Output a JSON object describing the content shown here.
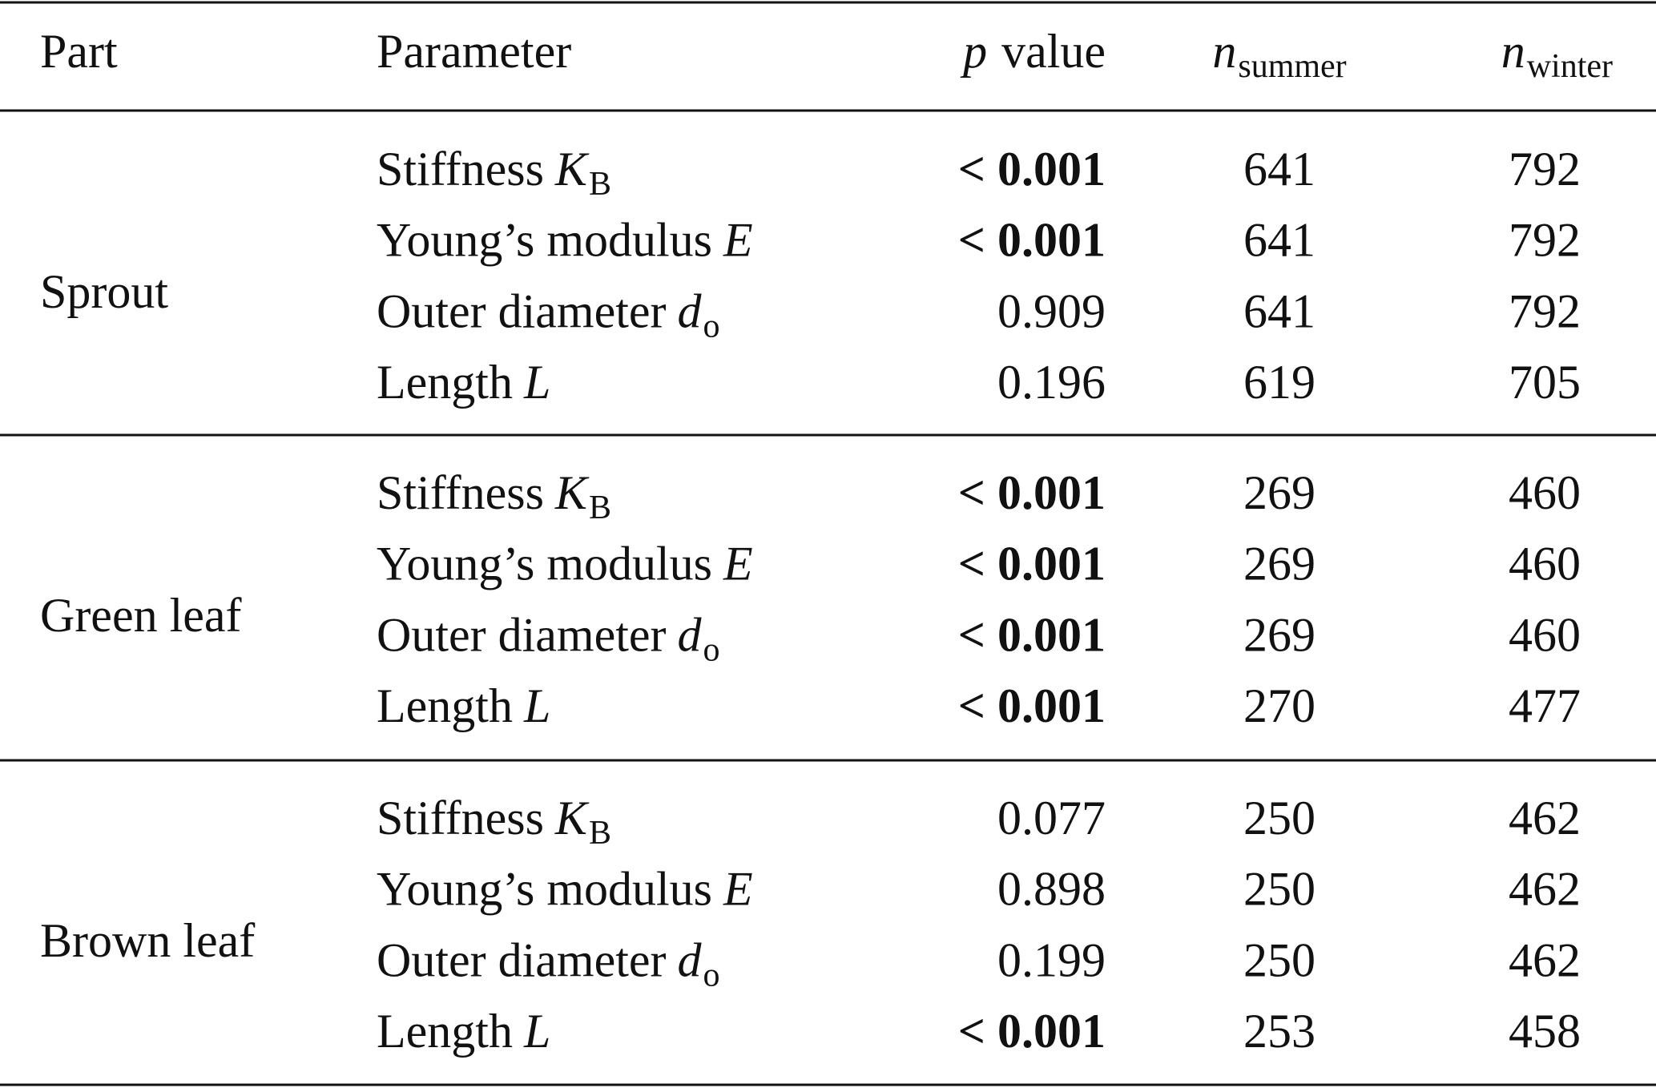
{
  "table": {
    "header": [
      {
        "text": "Part"
      },
      {
        "text": "Parameter"
      },
      {
        "symbol": "p",
        "text": "value"
      },
      {
        "symbol": "n",
        "subscript": "summer"
      },
      {
        "symbol": "n",
        "subscript": "winter"
      }
    ],
    "groups": [
      {
        "part": "Sprout",
        "rows": [
          {
            "name": "Stiffness",
            "symbol": "K",
            "subscript": "B",
            "p": "< 0.001",
            "n_summer": 641,
            "n_winter": 792
          },
          {
            "name": "Young’s modulus",
            "symbol": "E",
            "p": "< 0.001",
            "n_summer": 641,
            "n_winter": 792
          },
          {
            "name": "Outer diameter",
            "symbol": "d",
            "subscript": "o",
            "p": 0.909,
            "n_summer": 641,
            "n_winter": 792
          },
          {
            "name": "Length",
            "symbol": "L",
            "p": 0.196,
            "n_summer": 619,
            "n_winter": 705
          }
        ]
      },
      {
        "part": "Green leaf",
        "rows": [
          {
            "name": "Stiffness",
            "symbol": "K",
            "subscript": "B",
            "p": "< 0.001",
            "n_summer": 269,
            "n_winter": 460
          },
          {
            "name": "Young’s modulus",
            "symbol": "E",
            "p": "< 0.001",
            "n_summer": 269,
            "n_winter": 460
          },
          {
            "name": "Outer diameter",
            "symbol": "d",
            "subscript": "o",
            "p": "< 0.001",
            "n_summer": 269,
            "n_winter": 460
          },
          {
            "name": "Length",
            "symbol": "L",
            "p": "< 0.001",
            "n_summer": 270,
            "n_winter": 477
          }
        ]
      },
      {
        "part": "Brown leaf",
        "rows": [
          {
            "name": "Stiffness",
            "symbol": "K",
            "subscript": "B",
            "p": 0.077,
            "n_summer": 250,
            "n_winter": 462
          },
          {
            "name": "Young’s modulus",
            "symbol": "E",
            "p": 0.898,
            "n_summer": 250,
            "n_winter": 462
          },
          {
            "name": "Outer diameter",
            "symbol": "d",
            "subscript": "o",
            "p": 0.199,
            "n_summer": 250,
            "n_winter": 462
          },
          {
            "name": "Length",
            "symbol": "L",
            "p": "< 0.001",
            "n_summer": 253,
            "n_winter": 458
          }
        ]
      }
    ]
  }
}
